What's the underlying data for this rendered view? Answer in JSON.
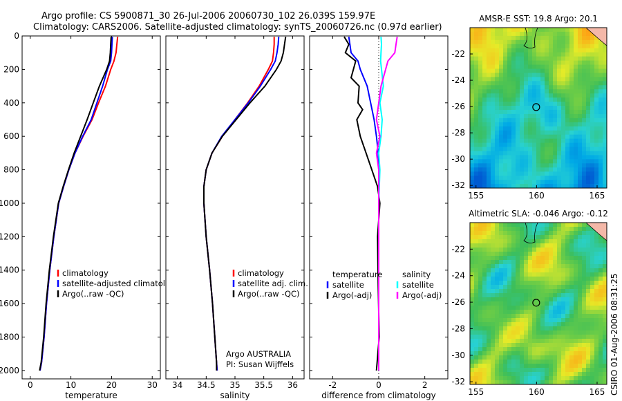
{
  "header": {
    "line1": "Argo profile: CS 5900871_30 26-Jul-2006 20060730_102 26.039S 159.97E",
    "line2": "Climatology: CARS2006. Satellite-adjusted climatology: synTS_20060726.nc (0.97d earlier)"
  },
  "side_label": "CSIRO 01-Aug-2006 08:31:25",
  "chart_data": [
    {
      "type": "line",
      "xlabel": "temperature",
      "ylim": [
        2050,
        0
      ],
      "xlim": [
        -2,
        32
      ],
      "xticks": [
        0,
        10,
        20,
        30
      ],
      "yticks": [
        0,
        200,
        400,
        600,
        800,
        1000,
        1200,
        1400,
        1600,
        1800,
        2000
      ],
      "legend": [
        "climatology",
        "satellite-adjusted climatology",
        "Argo(..raw -QC)"
      ],
      "series": [
        {
          "name": "climatology",
          "color": "#ff0000",
          "x": [
            21.5,
            21.3,
            21.1,
            20.6,
            19.8,
            18.5,
            16.8,
            15.2,
            13.0,
            11.0,
            9.5,
            8.2,
            7.0,
            5.8,
            4.8,
            4.0,
            3.4,
            2.8,
            2.4
          ],
          "y": [
            5,
            50,
            100,
            150,
            200,
            300,
            400,
            500,
            600,
            700,
            800,
            900,
            1000,
            1200,
            1400,
            1600,
            1800,
            1950,
            2000
          ]
        },
        {
          "name": "satellite-adjusted climatology",
          "color": "#0000ff",
          "x": [
            20.2,
            20.1,
            20.0,
            19.8,
            19.0,
            17.8,
            16.4,
            15.0,
            12.9,
            11.0,
            9.5,
            8.2,
            7.0,
            5.8,
            4.8,
            4.0,
            3.4,
            2.8,
            2.4
          ],
          "y": [
            5,
            50,
            100,
            150,
            200,
            300,
            400,
            500,
            600,
            700,
            800,
            900,
            1000,
            1200,
            1400,
            1600,
            1800,
            1950,
            2000
          ]
        },
        {
          "name": "Argo(..raw -QC)",
          "color": "#000000",
          "x": [
            19.9,
            19.8,
            19.7,
            19.5,
            18.8,
            17.0,
            15.5,
            14.0,
            12.4,
            10.8,
            9.4,
            8.1,
            6.9,
            5.7,
            4.7,
            3.9,
            3.3,
            2.7,
            2.3
          ],
          "y": [
            5,
            50,
            100,
            150,
            200,
            300,
            400,
            500,
            600,
            700,
            800,
            900,
            1000,
            1200,
            1400,
            1600,
            1800,
            1950,
            2000
          ]
        }
      ]
    },
    {
      "type": "line",
      "xlabel": "salinity",
      "ylim": [
        2050,
        0
      ],
      "xlim": [
        33.8,
        36.2
      ],
      "xticks": [
        34,
        34.5,
        35,
        35.5,
        36
      ],
      "legend": [
        "climatology",
        "satellite adj. clim.",
        "Argo(..raw -QC)"
      ],
      "annotation": [
        "Argo AUSTRALIA",
        "PI: Susan Wijffels"
      ],
      "series": [
        {
          "name": "climatology",
          "color": "#ff0000",
          "x": [
            35.68,
            35.68,
            35.67,
            35.65,
            35.58,
            35.42,
            35.22,
            35.0,
            34.78,
            34.6,
            34.5,
            34.46,
            34.46,
            34.5,
            34.56,
            34.61,
            34.65,
            34.68,
            34.69
          ],
          "y": [
            5,
            50,
            100,
            150,
            200,
            300,
            400,
            500,
            600,
            700,
            800,
            900,
            1000,
            1200,
            1400,
            1600,
            1800,
            1950,
            2000
          ]
        },
        {
          "name": "satellite adj. clim.",
          "color": "#0000ff",
          "x": [
            35.76,
            35.75,
            35.73,
            35.7,
            35.62,
            35.44,
            35.23,
            35.0,
            34.77,
            34.6,
            34.5,
            34.46,
            34.46,
            34.5,
            34.56,
            34.61,
            34.65,
            34.68,
            34.69
          ],
          "y": [
            5,
            50,
            100,
            150,
            200,
            300,
            400,
            500,
            600,
            700,
            800,
            900,
            1000,
            1200,
            1400,
            1600,
            1800,
            1950,
            2000
          ]
        },
        {
          "name": "Argo(..raw -QC)",
          "color": "#000000",
          "x": [
            35.88,
            35.86,
            35.84,
            35.8,
            35.72,
            35.52,
            35.26,
            35.02,
            34.78,
            34.6,
            34.5,
            34.46,
            34.46,
            34.5,
            34.56,
            34.61,
            34.65,
            34.68,
            34.68
          ],
          "y": [
            5,
            50,
            100,
            150,
            200,
            300,
            400,
            500,
            600,
            700,
            800,
            900,
            1000,
            1200,
            1400,
            1600,
            1800,
            1950,
            2000
          ]
        }
      ]
    },
    {
      "type": "line",
      "xlabel": "difference from climatology",
      "ylim": [
        2050,
        0
      ],
      "xlim": [
        -3,
        3
      ],
      "xticks": [
        -2,
        0,
        2
      ],
      "legend_left": {
        "title": "temperature",
        "items": [
          "satellite",
          "Argo(-adj)"
        ]
      },
      "legend_right": {
        "title": "salinity",
        "items": [
          "satellite",
          "Argo(-adj)"
        ]
      },
      "series": [
        {
          "name": "temperature satellite",
          "color": "#0000ff",
          "x": [
            -1.3,
            -1.25,
            -1.2,
            -0.9,
            -0.8,
            -0.5,
            -0.35,
            -0.2,
            -0.1,
            -0.02,
            0.0,
            0.0,
            0.0,
            0.0,
            0.0,
            0.0
          ],
          "y": [
            5,
            50,
            100,
            150,
            200,
            300,
            400,
            500,
            600,
            700,
            800,
            1000,
            1200,
            1500,
            1800,
            2000
          ]
        },
        {
          "name": "temperature Argo(-adj)",
          "color": "#000000",
          "x": [
            -1.5,
            -1.3,
            -1.45,
            -1.0,
            -1.2,
            -0.85,
            -0.9,
            -0.7,
            -0.95,
            -0.8,
            -0.55,
            -0.3,
            -0.05,
            0.05,
            -0.05,
            -0.02,
            0.02,
            -0.1
          ],
          "y": [
            5,
            50,
            100,
            150,
            250,
            300,
            400,
            440,
            500,
            600,
            700,
            800,
            900,
            1000,
            1200,
            1500,
            1800,
            2000
          ]
        },
        {
          "name": "salinity satellite",
          "color": "#00ffff",
          "x": [
            0.1,
            0.12,
            0.1,
            0.08,
            0.2,
            0.05,
            0.15,
            0.1,
            0.0,
            0.05,
            0.0,
            0.0,
            0.0,
            0.0
          ],
          "y": [
            5,
            50,
            100,
            150,
            300,
            400,
            500,
            600,
            700,
            800,
            1000,
            1300,
            1600,
            2000
          ]
        },
        {
          "name": "salinity Argo(-adj)",
          "color": "#ff00ff",
          "x": [
            0.8,
            0.75,
            0.7,
            0.4,
            0.1,
            -0.1,
            0.05,
            -0.1,
            0.0,
            0.0,
            0.0,
            0.0,
            0.0
          ],
          "y": [
            5,
            50,
            100,
            150,
            300,
            500,
            600,
            700,
            800,
            1000,
            1300,
            1600,
            2000
          ]
        }
      ]
    },
    {
      "type": "heatmap",
      "title": "AMSR-E SST: 19.8  Argo: 20.1",
      "xticks": [
        155,
        160,
        165
      ],
      "yticks": [
        -22,
        -24,
        -26,
        -28,
        -30,
        -32
      ],
      "xlim": [
        154.5,
        165.8
      ],
      "ylim": [
        -32.2,
        -20.0
      ],
      "marker": {
        "lon": 159.97,
        "lat": -26.04
      }
    },
    {
      "type": "heatmap",
      "title": "Altimetric SLA: -0.046  Argo: -0.12",
      "xticks": [
        155,
        160,
        165
      ],
      "yticks": [
        -22,
        -24,
        -26,
        -28,
        -30,
        -32
      ],
      "xlim": [
        154.5,
        165.8
      ],
      "ylim": [
        -32.2,
        -20.0
      ],
      "marker": {
        "lon": 159.97,
        "lat": -26.04
      }
    }
  ]
}
